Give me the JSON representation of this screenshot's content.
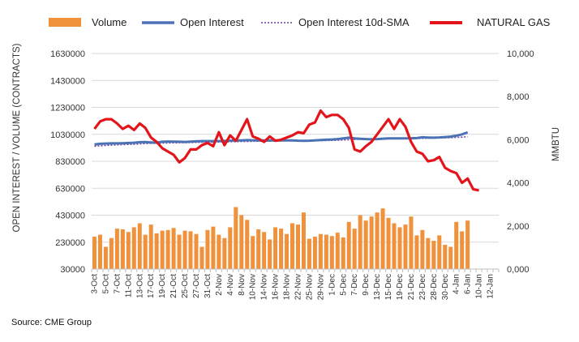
{
  "source_text": "Source: CME Group",
  "colors": {
    "volume": "#f0923c",
    "open_interest": "#4a72b5",
    "sma": "#6a3fa0",
    "natural_gas": "#e3151b",
    "grid": "#d9d9d9",
    "axis_text": "#333333"
  },
  "chart_data": {
    "type": "bar",
    "legend": {
      "position": "top",
      "entries": [
        "Volume",
        "Open Interest",
        "Open Interest 10d-SMA",
        "NATURAL GAS"
      ]
    },
    "ylabel": "OPEN INTEREST / VOLUME (CONTRACTS)",
    "y2label": "MMBTU",
    "ylim": [
      30000,
      1630000
    ],
    "y2lim": [
      0,
      10000
    ],
    "y_ticks": [
      "1630000",
      "1430000",
      "1230000",
      "1030000",
      "830000",
      "630000",
      "430000",
      "230000",
      "30000"
    ],
    "y2_ticks": [
      "10,000",
      "8,000",
      "6,000",
      "4,000",
      "2,000",
      "0,000"
    ],
    "x_tick_labels": [
      "3-Oct",
      "5-Oct",
      "7-Oct",
      "11-Oct",
      "13-Oct",
      "17-Oct",
      "19-Oct",
      "21-Oct",
      "25-Oct",
      "27-Oct",
      "31-Oct",
      "2-Nov",
      "4-Nov",
      "8-Nov",
      "10-Nov",
      "14-Nov",
      "16-Nov",
      "18-Nov",
      "22-Nov",
      "25-Nov",
      "29-Nov",
      "1-Dec",
      "5-Dec",
      "7-Dec",
      "9-Dec",
      "13-Dec",
      "15-Dec",
      "19-Dec",
      "21-Dec",
      "23-Dec",
      "28-Dec",
      "30-Dec",
      "4-Jan",
      "6-Jan",
      "10-Jan",
      "12-Jan"
    ],
    "n_days": 72,
    "volume": [
      270000,
      285000,
      195000,
      260000,
      330000,
      325000,
      305000,
      340000,
      370000,
      285000,
      360000,
      295000,
      315000,
      320000,
      335000,
      285000,
      315000,
      310000,
      290000,
      195000,
      320000,
      345000,
      285000,
      260000,
      340000,
      490000,
      430000,
      395000,
      275000,
      325000,
      305000,
      250000,
      340000,
      330000,
      290000,
      370000,
      360000,
      450000,
      255000,
      270000,
      290000,
      285000,
      275000,
      300000,
      265000,
      380000,
      330000,
      430000,
      390000,
      420000,
      450000,
      480000,
      410000,
      370000,
      340000,
      360000,
      420000,
      280000,
      320000,
      260000,
      240000,
      280000,
      210000,
      195000,
      380000,
      310000,
      390000,
      null,
      null,
      null,
      null,
      null
    ],
    "open_interest": [
      955000,
      960000,
      962000,
      963000,
      963000,
      964000,
      966000,
      968000,
      972000,
      973000,
      970000,
      968000,
      975000,
      977000,
      976000,
      975000,
      974000,
      976000,
      978000,
      980000,
      980000,
      980000,
      980000,
      982000,
      983000,
      985000,
      985000,
      987000,
      986000,
      985000,
      985000,
      984000,
      985000,
      986000,
      985000,
      985000,
      983000,
      982000,
      983000,
      985000,
      988000,
      990000,
      992000,
      995000,
      1000000,
      1005000,
      1000000,
      997000,
      995000,
      993000,
      995000,
      998000,
      1000000,
      1000000,
      1000000,
      1000000,
      1001000,
      1002000,
      1008000,
      1006000,
      1005000,
      1007000,
      1010000,
      1013000,
      1020000,
      1030000,
      1045000,
      null,
      null,
      null,
      null,
      null
    ],
    "open_interest_sma": [
      942000,
      945000,
      948000,
      950000,
      952000,
      954000,
      955000,
      957000,
      959000,
      961000,
      963000,
      964000,
      965000,
      966000,
      967000,
      968000,
      968000,
      969000,
      970000,
      971000,
      972000,
      972000,
      973000,
      974000,
      975000,
      976000,
      977000,
      977000,
      978000,
      979000,
      979000,
      980000,
      981000,
      981000,
      982000,
      982000,
      982000,
      982000,
      982000,
      983000,
      983000,
      984000,
      985000,
      986000,
      988000,
      990000,
      992000,
      993000,
      994000,
      995000,
      995000,
      996000,
      996000,
      997000,
      997000,
      998000,
      999000,
      999000,
      1000000,
      1001000,
      1002000,
      1003000,
      1004000,
      1005000,
      1007000,
      1009000,
      1012000,
      null,
      null,
      null,
      null,
      null
    ],
    "natural_gas": [
      6500,
      6850,
      6950,
      6950,
      6750,
      6500,
      6650,
      6450,
      6750,
      6550,
      6100,
      5900,
      5600,
      5450,
      5300,
      4950,
      5150,
      5550,
      5550,
      5750,
      5850,
      5700,
      6350,
      5750,
      6200,
      5950,
      6450,
      6950,
      6150,
      6050,
      5900,
      6150,
      5950,
      6000,
      6100,
      6200,
      6350,
      6300,
      6700,
      6800,
      7350,
      7050,
      7150,
      7150,
      6950,
      6550,
      5550,
      5450,
      5700,
      5900,
      6250,
      6600,
      6950,
      6500,
      6950,
      6600,
      5900,
      5450,
      5350,
      5000,
      5050,
      5200,
      4700,
      4550,
      4450,
      4000,
      4200,
      3700,
      3650,
      null,
      null,
      null
    ]
  }
}
